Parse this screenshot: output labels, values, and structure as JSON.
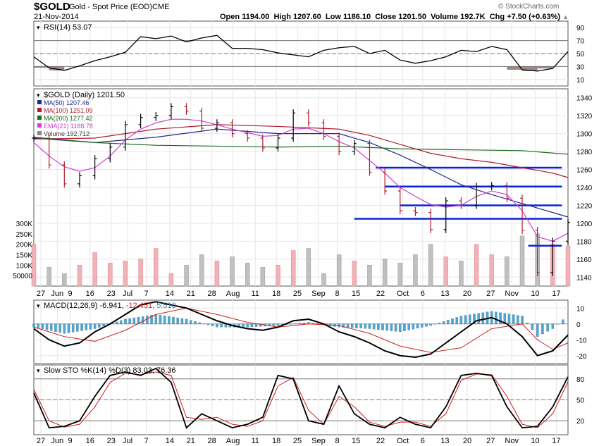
{
  "header": {
    "symbol": "$GOLD",
    "name": "Gold - Spot Price (EOD)",
    "exchange": "CME",
    "date": "21-Nov-2014",
    "open_label": "Open",
    "open": "1194.00",
    "high_label": "High",
    "high": "1207.60",
    "low_label": "Low",
    "low": "1186.10",
    "close_label": "Close",
    "close": "1201.50",
    "volume_label": "Volume",
    "volume": "192.7K",
    "chg_label": "Chg",
    "chg": "+7.50 (+0.63%)",
    "watermark": "© StockCharts.com"
  },
  "colors": {
    "ma50": "#1f2a8a",
    "ma100": "#b01c2e",
    "ma200": "#1d6b1d",
    "ema21": "#d13fd1",
    "level_line": "#0a22d9",
    "macd_hist": "#53a6cf",
    "up_vol": "#f0b2b8",
    "down_vol": "#c0c0c0",
    "rsi_fill": "#8a6a6a"
  },
  "chart_data": [
    {
      "type": "line",
      "title": "RSI(14) 53.07",
      "ylim": [
        0,
        100
      ],
      "y_ticks": [
        "90",
        "70",
        "50",
        "30",
        "10"
      ],
      "x": [
        0,
        5,
        10,
        15,
        20,
        25,
        30,
        35,
        40,
        45,
        50,
        55,
        60,
        65,
        70,
        75,
        80,
        85,
        90,
        95,
        100,
        105,
        110,
        115,
        120,
        125,
        130,
        135,
        140,
        145,
        150,
        155,
        160,
        165,
        170,
        175
      ],
      "values": [
        45,
        28,
        24,
        31,
        39,
        45,
        52,
        76,
        73,
        77,
        68,
        74,
        78,
        58,
        58,
        56,
        51,
        48,
        45,
        55,
        59,
        61,
        50,
        55,
        40,
        35,
        39,
        45,
        55,
        53,
        61,
        56,
        25,
        23,
        27,
        53
      ],
      "reference_lines": [
        70,
        50,
        30
      ]
    },
    {
      "type": "line",
      "title": "$GOLD (Daily) 1201.50",
      "ylim": [
        1130,
        1350
      ],
      "y_ticks": [
        "1340",
        "1320",
        "1300",
        "1280",
        "1260",
        "1240",
        "1220",
        "1200",
        "1180",
        "1160",
        "1140"
      ],
      "x_ticks": [
        "27",
        "Jun",
        "9",
        "16",
        "23",
        "Jul",
        "7",
        "14",
        "21",
        "28",
        "Aug",
        "11",
        "18",
        "25",
        "Sep",
        "8",
        "15",
        "22",
        "Oct",
        "6",
        "13",
        "20",
        "27",
        "Nov",
        "10",
        "17"
      ],
      "series": [
        {
          "name": "$GOLD",
          "x": [
            0,
            5,
            10,
            15,
            20,
            25,
            30,
            35,
            40,
            45,
            50,
            55,
            60,
            65,
            70,
            75,
            80,
            85,
            90,
            95,
            100,
            105,
            110,
            115,
            120,
            125,
            130,
            135,
            140,
            145,
            150,
            155,
            160,
            165,
            170,
            175
          ],
          "values": [
            1295,
            1265,
            1244,
            1253,
            1272,
            1285,
            1310,
            1318,
            1320,
            1330,
            1325,
            1306,
            1312,
            1300,
            1295,
            1284,
            1295,
            1323,
            1312,
            1297,
            1280,
            1289,
            1257,
            1236,
            1214,
            1212,
            1193,
            1225,
            1220,
            1241,
            1242,
            1228,
            1192,
            1145,
            1180,
            1201
          ]
        },
        {
          "name": "MA(50)",
          "label": "MA(50) 1207.46",
          "x": [
            0,
            20,
            40,
            60,
            80,
            100,
            110,
            120,
            130,
            140,
            150,
            160,
            170,
            175
          ],
          "values": [
            1295,
            1290,
            1296,
            1305,
            1300,
            1300,
            1290,
            1276,
            1260,
            1243,
            1232,
            1222,
            1212,
            1207
          ]
        },
        {
          "name": "MA(100)",
          "label": "MA(100) 1251.09",
          "x": [
            0,
            20,
            40,
            60,
            80,
            100,
            110,
            120,
            130,
            140,
            150,
            160,
            170,
            175
          ],
          "values": [
            1294,
            1295,
            1305,
            1310,
            1308,
            1305,
            1298,
            1288,
            1278,
            1272,
            1268,
            1262,
            1256,
            1251
          ]
        },
        {
          "name": "MA(200)",
          "label": "MA(200) 1277.42",
          "x": [
            0,
            20,
            40,
            60,
            80,
            100,
            120,
            140,
            160,
            175
          ],
          "values": [
            1296,
            1290,
            1287,
            1286,
            1285,
            1286,
            1283,
            1282,
            1281,
            1277
          ]
        },
        {
          "name": "EMA(21)",
          "label": "EMA(21) 1188.78",
          "x": [
            0,
            5,
            10,
            15,
            20,
            25,
            30,
            35,
            40,
            45,
            50,
            55,
            60,
            65,
            70,
            75,
            80,
            85,
            90,
            95,
            100,
            105,
            110,
            115,
            120,
            125,
            130,
            135,
            140,
            145,
            150,
            155,
            160,
            165,
            170,
            175
          ],
          "values": [
            1290,
            1275,
            1263,
            1258,
            1262,
            1275,
            1293,
            1305,
            1312,
            1316,
            1316,
            1314,
            1310,
            1305,
            1301,
            1297,
            1298,
            1305,
            1306,
            1300,
            1291,
            1284,
            1270,
            1256,
            1240,
            1230,
            1221,
            1218,
            1220,
            1230,
            1236,
            1232,
            1214,
            1185,
            1180,
            1189
          ]
        },
        {
          "name": "Volume",
          "label": "Volume 192,712",
          "x": [
            0,
            5,
            10,
            15,
            20,
            25,
            30,
            35,
            40,
            45,
            50,
            55,
            60,
            65,
            70,
            75,
            80,
            85,
            90,
            95,
            100,
            105,
            110,
            115,
            120,
            125,
            130,
            135,
            140,
            145,
            150,
            155,
            160,
            165,
            170,
            175
          ],
          "values": [
            200,
            90,
            60,
            100,
            160,
            110,
            120,
            130,
            180,
            60,
            100,
            150,
            120,
            140,
            110,
            90,
            100,
            170,
            180,
            60,
            150,
            120,
            100,
            130,
            110,
            150,
            200,
            140,
            120,
            200,
            150,
            140,
            240,
            250,
            200,
            192
          ]
        }
      ],
      "volume_ticks": [
        "300K",
        "250K",
        "200K",
        "150K",
        "100K",
        "50000"
      ],
      "level_lines": [
        1262,
        1241,
        1220,
        1205,
        1175
      ]
    },
    {
      "type": "line",
      "title": "MACD(12,26,9) -6.941, -12.451, 5.510",
      "ylim": [
        -25,
        15
      ],
      "y_ticks": [
        "10",
        "0",
        "-10",
        "-20"
      ],
      "series": [
        {
          "name": "MACD",
          "label": "MACD(12,26,9) -6.941",
          "x": [
            0,
            5,
            10,
            15,
            20,
            25,
            30,
            35,
            40,
            45,
            50,
            55,
            60,
            65,
            70,
            75,
            80,
            85,
            90,
            95,
            100,
            105,
            110,
            115,
            120,
            125,
            130,
            135,
            140,
            145,
            150,
            155,
            160,
            165,
            170,
            175
          ],
          "values": [
            -3,
            -10,
            -14,
            -12,
            -5,
            0,
            6,
            12,
            14,
            12,
            10,
            6,
            2,
            -1,
            -3,
            -4,
            -2,
            2,
            3,
            0,
            -5,
            -8,
            -12,
            -17,
            -20,
            -21,
            -19,
            -12,
            -5,
            2,
            4,
            0,
            -8,
            -20,
            -17,
            -7
          ]
        },
        {
          "name": "Signal",
          "label": "-12.451",
          "x": [
            0,
            10,
            20,
            30,
            40,
            50,
            60,
            70,
            80,
            90,
            100,
            110,
            120,
            130,
            140,
            150,
            160,
            165,
            170,
            175
          ],
          "values": [
            -2,
            -8,
            -11,
            -4,
            6,
            10,
            6,
            1,
            -2,
            0,
            -1,
            -6,
            -14,
            -18,
            -15,
            -3,
            0,
            -10,
            -16,
            -12
          ]
        },
        {
          "name": "Histogram",
          "label": "5.510",
          "x": [
            0,
            10,
            20,
            30,
            40,
            50,
            60,
            70,
            80,
            90,
            100,
            110,
            120,
            130,
            140,
            150,
            160,
            165,
            170,
            175
          ],
          "values": [
            -2,
            -6,
            -3,
            3,
            6,
            3,
            -2,
            -2,
            -1,
            1,
            -2,
            -3,
            -5,
            -1,
            5,
            8,
            5,
            -8,
            -3,
            5.5
          ]
        }
      ]
    },
    {
      "type": "line",
      "title": "Slow STO %K(14) %D(3) 83.03, 76.36",
      "ylim": [
        0,
        100
      ],
      "y_ticks": [
        "80",
        "50",
        "20"
      ],
      "x_ticks": [
        "27",
        "Jun",
        "9",
        "16",
        "23",
        "Jul",
        "7",
        "14",
        "21",
        "28",
        "Aug",
        "11",
        "18",
        "25",
        "Sep",
        "8",
        "15",
        "22",
        "Oct",
        "6",
        "13",
        "20",
        "27",
        "Nov",
        "10",
        "17"
      ],
      "series": [
        {
          "name": "%K",
          "label": "%K(14) 83.03",
          "x": [
            0,
            5,
            10,
            15,
            20,
            25,
            30,
            35,
            40,
            45,
            50,
            55,
            60,
            65,
            70,
            75,
            80,
            85,
            90,
            95,
            100,
            105,
            110,
            115,
            120,
            125,
            130,
            135,
            140,
            145,
            150,
            155,
            160,
            165,
            170,
            175
          ],
          "values": [
            60,
            10,
            12,
            20,
            55,
            85,
            90,
            85,
            95,
            75,
            10,
            30,
            20,
            10,
            15,
            25,
            85,
            80,
            20,
            15,
            70,
            30,
            15,
            10,
            25,
            15,
            10,
            40,
            85,
            88,
            85,
            40,
            10,
            12,
            40,
            83
          ]
        },
        {
          "name": "%D",
          "label": "%D(3) 76.36",
          "x": [
            0,
            5,
            10,
            15,
            20,
            25,
            30,
            35,
            40,
            45,
            50,
            55,
            60,
            65,
            70,
            75,
            80,
            85,
            90,
            95,
            100,
            105,
            110,
            115,
            120,
            125,
            130,
            135,
            140,
            145,
            150,
            155,
            160,
            165,
            170,
            175
          ],
          "values": [
            65,
            20,
            11,
            15,
            40,
            75,
            88,
            86,
            90,
            85,
            25,
            22,
            25,
            15,
            12,
            20,
            70,
            82,
            35,
            15,
            55,
            40,
            18,
            12,
            18,
            18,
            12,
            30,
            78,
            87,
            86,
            55,
            15,
            10,
            30,
            76
          ]
        }
      ],
      "reference_lines": [
        80,
        50,
        20
      ]
    }
  ]
}
